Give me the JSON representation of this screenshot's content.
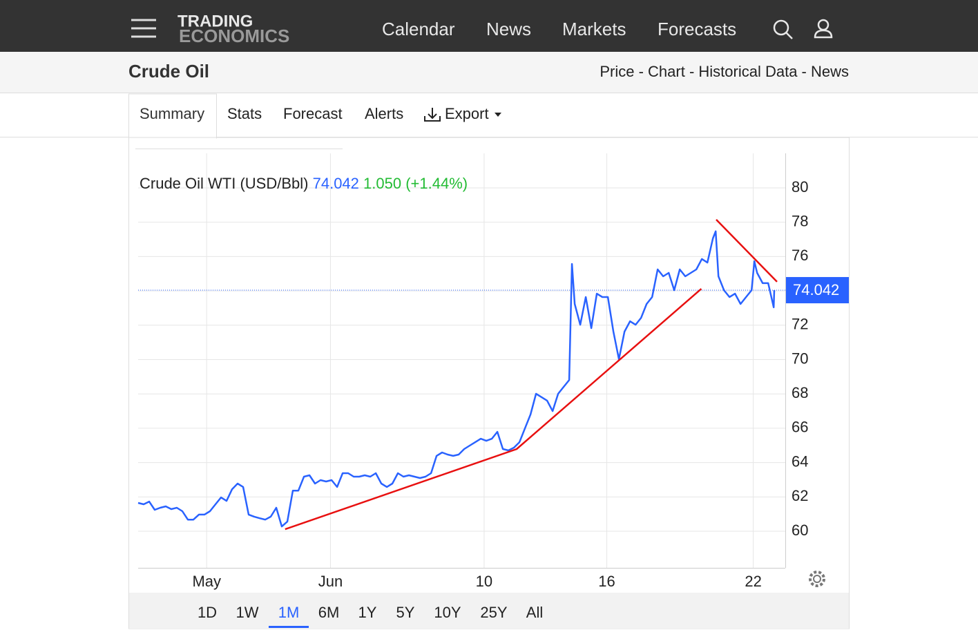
{
  "nav": {
    "logo": [
      "TRADING",
      "ECONOMICS"
    ],
    "items": [
      "Calendar",
      "News",
      "Markets",
      "Forecasts"
    ]
  },
  "header": {
    "title": "Crude Oil",
    "links": "Price - Chart - Historical Data - News"
  },
  "tabs": [
    "Summary",
    "Stats",
    "Forecast",
    "Alerts",
    "Export"
  ],
  "ranges": [
    "1D",
    "1W",
    "1M",
    "6M",
    "1Y",
    "5Y",
    "10Y",
    "25Y",
    "All"
  ],
  "active_range": "1M",
  "chart_data": {
    "type": "line",
    "title": "Crude Oil WTI (USD/Bbl)",
    "last": 74.042,
    "change": "1.050 (+1.44%)",
    "series": [
      {
        "name": "Crude Oil WTI",
        "color": "#2962ff",
        "x": [
          0,
          1,
          2,
          3,
          4,
          5,
          6,
          7,
          8,
          9,
          10,
          11,
          12,
          13,
          14,
          15,
          16,
          17,
          18,
          19,
          20,
          21,
          22,
          23,
          24,
          25,
          26,
          27,
          28,
          29,
          30,
          31,
          32,
          33,
          34,
          35,
          36,
          37,
          38,
          39,
          40,
          41,
          42,
          43,
          44,
          45,
          46,
          47,
          48,
          49,
          50,
          51,
          52,
          53,
          54,
          55,
          56,
          57,
          58,
          59,
          60,
          61,
          62,
          63,
          64,
          65,
          66,
          67,
          68,
          69,
          70,
          71,
          72,
          73,
          74,
          75,
          76,
          77,
          78,
          78.5,
          79,
          80,
          81,
          82,
          83,
          84,
          85,
          86,
          87,
          88,
          89,
          90,
          91,
          92,
          93,
          94,
          95,
          96,
          97,
          98,
          99,
          100,
          101,
          102,
          103,
          104,
          104.5,
          105,
          106,
          107,
          108,
          109,
          110,
          111,
          111.5,
          112,
          113,
          114,
          115,
          115.1
        ],
        "values": [
          61.65,
          61.57,
          61.73,
          61.25,
          61.37,
          61.45,
          61.29,
          61.37,
          61.17,
          60.68,
          60.68,
          60.97,
          60.97,
          61.17,
          61.57,
          61.97,
          61.77,
          62.45,
          62.78,
          62.58,
          60.97,
          60.85,
          60.76,
          60.68,
          60.85,
          61.37,
          60.28,
          60.56,
          62.37,
          62.37,
          63.18,
          63.26,
          62.78,
          62.98,
          62.9,
          62.98,
          62.58,
          63.38,
          63.38,
          63.18,
          63.18,
          63.26,
          63.18,
          63.38,
          62.78,
          62.58,
          62.78,
          63.38,
          63.18,
          63.26,
          63.18,
          63.1,
          63.18,
          63.38,
          64.39,
          64.59,
          64.47,
          64.39,
          64.47,
          64.79,
          64.99,
          65.19,
          65.39,
          65.27,
          65.39,
          65.79,
          64.79,
          64.71,
          64.87,
          65.19,
          66.0,
          66.8,
          68.01,
          67.81,
          67.61,
          67.0,
          68.01,
          68.41,
          68.81,
          75.57,
          73.24,
          72.03,
          73.64,
          71.83,
          73.84,
          73.64,
          73.64,
          71.63,
          70.02,
          71.63,
          72.23,
          72.03,
          72.43,
          73.24,
          73.64,
          75.25,
          74.85,
          75.05,
          74.04,
          75.25,
          74.85,
          75.05,
          75.25,
          75.86,
          75.65,
          77.06,
          77.47,
          74.85,
          74.04,
          73.64,
          73.84,
          73.24,
          73.64,
          74.04,
          75.73,
          75.05,
          74.45,
          74.45,
          73.04,
          74.042
        ]
      }
    ],
    "trendlines": [
      {
        "color": "#e81010",
        "x": [
          26.6,
          68.5,
          101.9
        ],
        "y": [
          60.12,
          64.79,
          74.12
        ]
      },
      {
        "color": "#e81010",
        "x": [
          104.6,
          115.6
        ],
        "y": [
          78.15,
          74.53
        ]
      }
    ],
    "xlim": [
      0,
      117.1
    ],
    "xticks": [
      {
        "value": 12.4,
        "label": "May"
      },
      {
        "value": 34.8,
        "label": "Jun"
      },
      {
        "value": 62.6,
        "label": "10"
      },
      {
        "value": 84.8,
        "label": "16"
      },
      {
        "value": 111.3,
        "label": "22"
      }
    ],
    "ylim": [
      57.87,
      82.01
    ],
    "yticks": [
      60,
      62,
      64,
      66,
      68,
      70,
      72,
      74,
      76,
      78,
      80
    ],
    "grid": true
  }
}
